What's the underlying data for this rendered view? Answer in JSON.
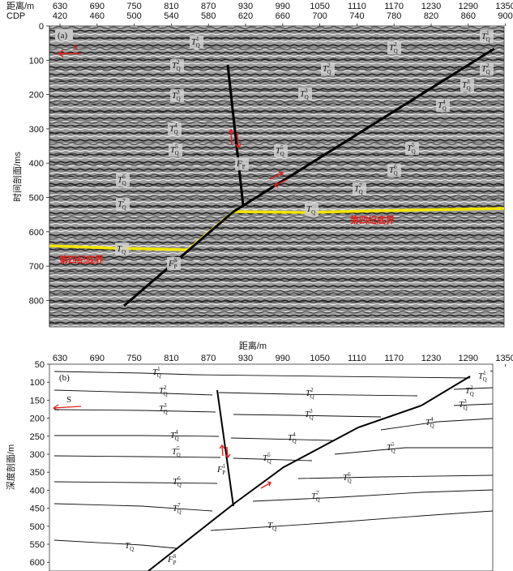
{
  "panel_a": {
    "label": "(a)",
    "top_axis_label": "距离/m",
    "cdp_label": "CDP",
    "distance_ticks": [
      "630",
      "690",
      "750",
      "810",
      "870",
      "930",
      "990",
      "1050",
      "1110",
      "1170",
      "1230",
      "1290",
      "1350"
    ],
    "cdp_ticks": [
      "420",
      "460",
      "500",
      "540",
      "580",
      "620",
      "660",
      "700",
      "740",
      "780",
      "820",
      "860",
      "900"
    ],
    "y_axis_label": "时间剖面/ms",
    "y_ticks": [
      "0",
      "100",
      "200",
      "300",
      "400",
      "500",
      "600",
      "700",
      "800"
    ],
    "quaternary_bottom_left": "第四纪底界",
    "quaternary_bottom_right": "第四纪底界",
    "south_marker": "S",
    "horizons": [
      {
        "id": "a-tq1-left",
        "base": "T",
        "sub": "Q",
        "sup": "1"
      },
      {
        "id": "a-tq1-right",
        "base": "T",
        "sub": "Q",
        "sup": "1"
      },
      {
        "id": "a-tq2-left",
        "base": "T",
        "sub": "Q",
        "sup": "2"
      },
      {
        "id": "a-tq2-mid",
        "base": "T",
        "sub": "Q",
        "sup": "2"
      },
      {
        "id": "a-tq2-right",
        "base": "T",
        "sub": "Q",
        "sup": "2"
      },
      {
        "id": "a-tq2-far",
        "base": "T",
        "sub": "Q",
        "sup": "2"
      },
      {
        "id": "a-tq3-left",
        "base": "T",
        "sub": "Q",
        "sup": "3"
      },
      {
        "id": "a-tq3-mid",
        "base": "T",
        "sub": "Q",
        "sup": "3"
      },
      {
        "id": "a-tq3-right",
        "base": "T",
        "sub": "Q",
        "sup": "3"
      },
      {
        "id": "a-tq4-left",
        "base": "T",
        "sub": "Q",
        "sup": "4"
      },
      {
        "id": "a-tq4-right",
        "base": "T",
        "sub": "Q",
        "sup": "4"
      },
      {
        "id": "a-tq5-left",
        "base": "T",
        "sub": "Q",
        "sup": "5"
      },
      {
        "id": "a-tq5-right",
        "base": "T",
        "sub": "Q",
        "sup": "5"
      },
      {
        "id": "a-tq5-mid",
        "base": "T",
        "sub": "Q",
        "sup": "5"
      },
      {
        "id": "a-tq6-left",
        "base": "T",
        "sub": "Q",
        "sup": "6"
      },
      {
        "id": "a-tq6-right",
        "base": "T",
        "sub": "Q",
        "sup": "6"
      },
      {
        "id": "a-tq7-left",
        "base": "T",
        "sub": "Q",
        "sup": "7"
      },
      {
        "id": "a-tq7-right",
        "base": "T",
        "sub": "Q",
        "sup": "7"
      },
      {
        "id": "a-tq-left",
        "base": "T",
        "sub": "Q",
        "sup": ""
      },
      {
        "id": "a-tq-mid",
        "base": "T",
        "sub": "Q",
        "sup": ""
      },
      {
        "id": "a-fp-upper",
        "base": "F",
        "sub": "P",
        "sup": ""
      },
      {
        "id": "a-fp-lower",
        "base": "F",
        "sub": "P",
        "sup": "S"
      }
    ]
  },
  "panel_b": {
    "label": "(b)",
    "top_axis_label": "距离/m",
    "distance_ticks": [
      "630",
      "690",
      "750",
      "810",
      "870",
      "930",
      "990",
      "1050",
      "1110",
      "1170",
      "1230",
      "1290",
      "1350"
    ],
    "y_axis_label": "深度剖面/m",
    "y_ticks": [
      "50",
      "100",
      "150",
      "200",
      "250",
      "300",
      "350",
      "400",
      "450",
      "500",
      "550",
      "600"
    ],
    "south_marker": "S",
    "horizons": [
      {
        "id": "b-tq1-left",
        "base": "T",
        "sub": "Q",
        "sup": "1"
      },
      {
        "id": "b-tq1-right",
        "base": "T",
        "sub": "Q",
        "sup": "1"
      },
      {
        "id": "b-tq2-left",
        "base": "T",
        "sub": "Q",
        "sup": "2"
      },
      {
        "id": "b-tq2-mid",
        "base": "T",
        "sub": "Q",
        "sup": "2"
      },
      {
        "id": "b-tq2-right",
        "base": "T",
        "sub": "Q",
        "sup": "2"
      },
      {
        "id": "b-tq3-left",
        "base": "T",
        "sub": "Q",
        "sup": "3"
      },
      {
        "id": "b-tq3-mid",
        "base": "T",
        "sub": "Q",
        "sup": "3"
      },
      {
        "id": "b-tq3-right",
        "base": "T",
        "sub": "Q",
        "sup": "3"
      },
      {
        "id": "b-tq4-left",
        "base": "T",
        "sub": "Q",
        "sup": "4"
      },
      {
        "id": "b-tq4-mid",
        "base": "T",
        "sub": "Q",
        "sup": "4"
      },
      {
        "id": "b-tq4-right",
        "base": "T",
        "sub": "Q",
        "sup": "4"
      },
      {
        "id": "b-tq5-left",
        "base": "T",
        "sub": "Q",
        "sup": "5"
      },
      {
        "id": "b-tq5-mid",
        "base": "T",
        "sub": "Q",
        "sup": "5"
      },
      {
        "id": "b-tq5-right",
        "base": "T",
        "sub": "Q",
        "sup": "5"
      },
      {
        "id": "b-tq6-left",
        "base": "T",
        "sub": "Q",
        "sup": "6"
      },
      {
        "id": "b-tq6-right",
        "base": "T",
        "sub": "Q",
        "sup": "6"
      },
      {
        "id": "b-tq7-left",
        "base": "T",
        "sub": "Q",
        "sup": "7"
      },
      {
        "id": "b-tq7-right",
        "base": "T",
        "sub": "Q",
        "sup": "7"
      },
      {
        "id": "b-tq-left",
        "base": "T",
        "sub": "Q",
        "sup": ""
      },
      {
        "id": "b-tq-mid",
        "base": "T",
        "sub": "Q",
        "sup": ""
      },
      {
        "id": "b-fp-upper",
        "base": "F",
        "sub": "P",
        "sup": "1"
      },
      {
        "id": "b-fp-lower",
        "base": "F",
        "sub": "P",
        "sup": "S"
      }
    ]
  },
  "colors": {
    "horizon_yellow": "#f2e600",
    "annotation_red": "#e0201c",
    "fault_black": "#000000",
    "seismic_gray": "#8c8c8c"
  }
}
